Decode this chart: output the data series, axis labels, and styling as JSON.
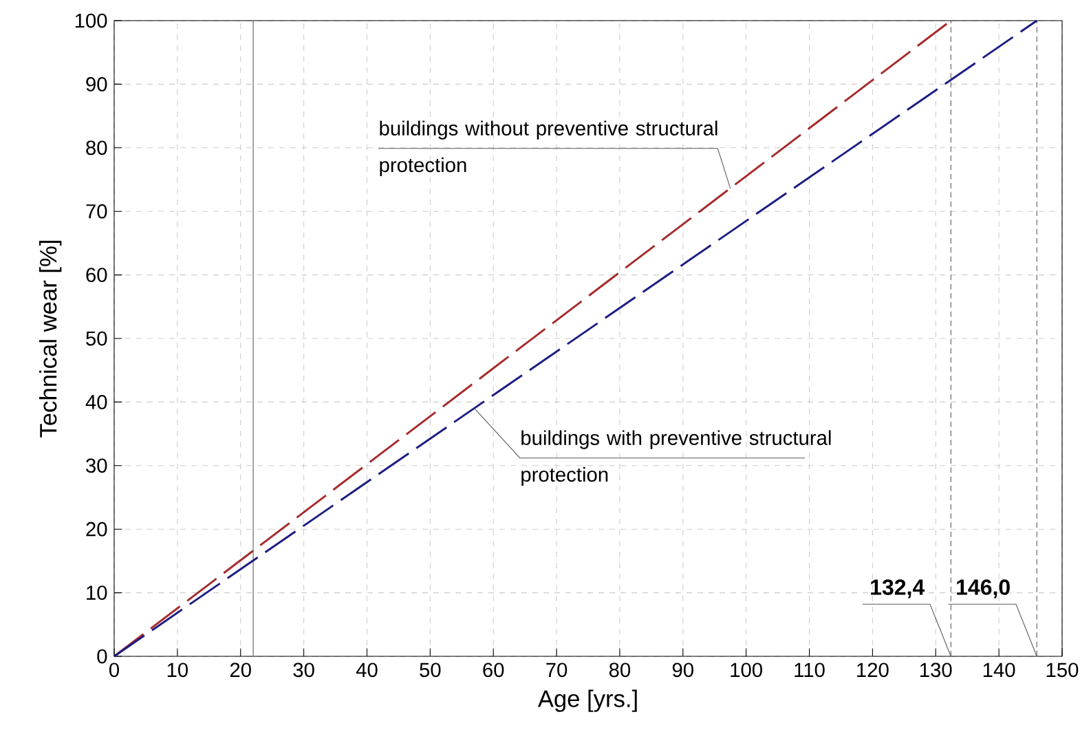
{
  "chart_data": {
    "type": "line",
    "xlabel": "Age [yrs.]",
    "ylabel": "Technical wear [%]",
    "xlim": [
      0,
      150
    ],
    "ylim": [
      0,
      100
    ],
    "xticks": [
      0,
      10,
      20,
      30,
      40,
      50,
      60,
      70,
      80,
      90,
      100,
      110,
      120,
      130,
      140,
      150
    ],
    "yticks": [
      0,
      10,
      20,
      30,
      40,
      50,
      60,
      70,
      80,
      90,
      100
    ],
    "grid": true,
    "line_style": "dashed",
    "marker": "none",
    "series": [
      {
        "name": "buildings without preventive structural protection",
        "color": "#a52a2a",
        "x": [
          0,
          132.4
        ],
        "values": [
          0,
          100
        ]
      },
      {
        "name": "buildings with preventive structural protection",
        "color": "#1c1c84",
        "x": [
          0,
          146
        ],
        "values": [
          0,
          100
        ]
      }
    ],
    "ref_lines": [
      {
        "axis": "x",
        "value": 22,
        "color": "#555555",
        "line_style": "solid"
      },
      {
        "axis": "x",
        "value": 132.4,
        "label": "132,4",
        "color": "#555555",
        "line_style": "dashed"
      },
      {
        "axis": "x",
        "value": 146,
        "label": "146,0",
        "color": "#555555",
        "line_style": "dashed"
      }
    ]
  }
}
